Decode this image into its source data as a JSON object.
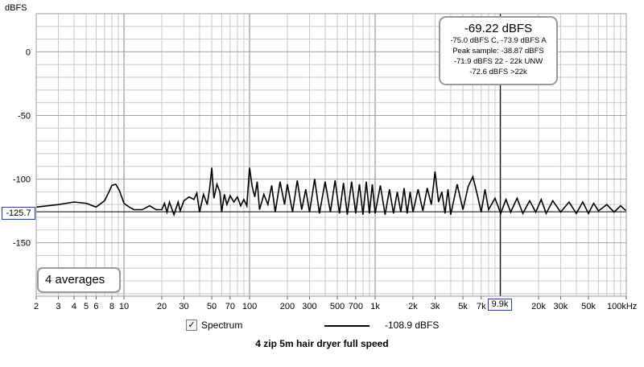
{
  "chart_data": {
    "type": "line",
    "title": "4 zip   5m  hair dryer full speed",
    "ylabel": "dBFS",
    "x_unit_label": "kHz",
    "xscale": "log",
    "xlim": [
      2,
      100000
    ],
    "ylim": [
      -192,
      30
    ],
    "grid": true,
    "y_ticks": [
      0,
      -50,
      -100,
      -150
    ],
    "y_tick_labels": [
      "0",
      "-50",
      "-100",
      "-150"
    ],
    "x_ticks": [
      2,
      3,
      4,
      5,
      6,
      8,
      10,
      20,
      30,
      50,
      70,
      100,
      200,
      300,
      500,
      700,
      1000,
      2000,
      3000,
      5000,
      7000,
      20000,
      30000,
      50000,
      100000
    ],
    "x_tick_labels": [
      "2",
      "3",
      "4",
      "5",
      "6",
      "8",
      "10",
      "20",
      "30",
      "50",
      "70",
      "100",
      "200",
      "300",
      "500",
      "700",
      "1k",
      "2k",
      "3k",
      "5k",
      "7k",
      "20k",
      "30k",
      "50k",
      "100kHz"
    ],
    "series": [
      {
        "name": "Spectrum",
        "legend_value": "-108.9 dBFS",
        "color": "#000000",
        "x": [
          2,
          3,
          4,
          5,
          6,
          7,
          7.6,
          8,
          8.6,
          9.2,
          10,
          11,
          12,
          14,
          16,
          18,
          20,
          21,
          22,
          23,
          25,
          27,
          28,
          30,
          33,
          36,
          38,
          40,
          43,
          46,
          48,
          50,
          52,
          55,
          58,
          60,
          63,
          66,
          70,
          75,
          80,
          85,
          90,
          95,
          100,
          105,
          110,
          115,
          120,
          130,
          140,
          150,
          160,
          175,
          190,
          200,
          220,
          240,
          260,
          280,
          300,
          330,
          360,
          400,
          440,
          480,
          520,
          560,
          600,
          650,
          700,
          750,
          800,
          850,
          900,
          950,
          1000,
          1100,
          1200,
          1300,
          1400,
          1500,
          1600,
          1700,
          1800,
          1900,
          2000,
          2200,
          2400,
          2600,
          2800,
          3000,
          3200,
          3400,
          3600,
          3800,
          4000,
          4500,
          5000,
          5500,
          6000,
          6500,
          7000,
          7500,
          8000,
          9000,
          10000,
          11000,
          12000,
          13500,
          15000,
          17000,
          19000,
          21000,
          23000,
          26000,
          30000,
          35000,
          40000,
          45000,
          50000,
          55000,
          60000,
          70000,
          80000,
          90000,
          100000
        ],
        "y": [
          -122,
          -120,
          -118,
          -119,
          -122,
          -117,
          -110,
          -105,
          -104,
          -109,
          -119,
          -122,
          -124,
          -124,
          -121,
          -124,
          -124,
          -119,
          -126,
          -118,
          -128,
          -118,
          -125,
          -117,
          -114,
          -116,
          -111,
          -126,
          -112,
          -120,
          -108,
          -91,
          -115,
          -104,
          -110,
          -126,
          -112,
          -120,
          -113,
          -118,
          -114,
          -121,
          -116,
          -121,
          -91,
          -106,
          -114,
          -102,
          -124,
          -112,
          -120,
          -105,
          -126,
          -102,
          -120,
          -104,
          -126,
          -101,
          -124,
          -108,
          -126,
          -100,
          -127,
          -102,
          -126,
          -101,
          -127,
          -103,
          -128,
          -102,
          -127,
          -104,
          -128,
          -102,
          -127,
          -104,
          -127,
          -105,
          -128,
          -108,
          -127,
          -110,
          -126,
          -107,
          -127,
          -110,
          -126,
          -108,
          -125,
          -107,
          -120,
          -94,
          -118,
          -110,
          -127,
          -108,
          -128,
          -104,
          -124,
          -106,
          -98,
          -112,
          -126,
          -108,
          -124,
          -115,
          -127,
          -116,
          -126,
          -115,
          -127,
          -117,
          -126,
          -116,
          -127,
          -117,
          -126,
          -118,
          -127,
          -118,
          -127,
          -119,
          -125,
          -120,
          -126,
          -121,
          -125
        ]
      }
    ]
  },
  "readout": {
    "main": "-69.22 dBFS",
    "lines": [
      "-75.0 dBFS C, -73.9 dBFS A",
      "Peak sample: -38.87 dBFS",
      "-71.9 dBFS 22 - 22k UNW",
      "-72.6 dBFS >22k"
    ]
  },
  "averages_label": "4 averages",
  "cursor": {
    "x_label": "9.9k",
    "x_value": 9900,
    "y_label": "-125.7",
    "y_value": -125.7
  },
  "legend": {
    "checkbox_mark": "✓"
  },
  "colors": {
    "grid": "#c8c8c8",
    "major_grid": "#808080",
    "trace": "#000000",
    "cursor": "#000000"
  }
}
